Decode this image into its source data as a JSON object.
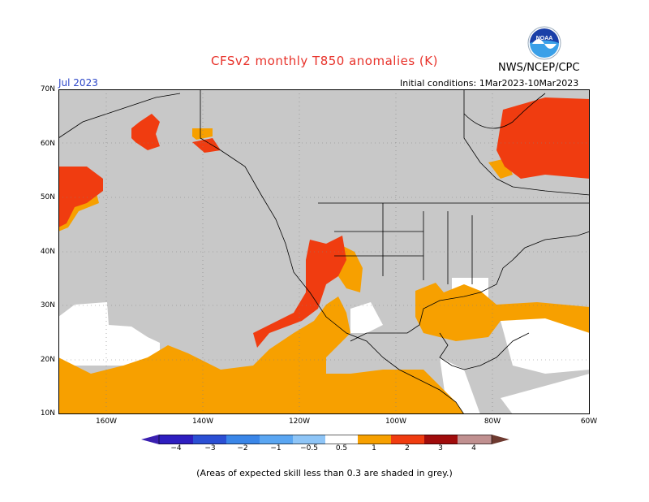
{
  "header": {
    "title": "CFSv2 monthly T850 anomalies (K)",
    "center": "NWS/NCEP/CPC",
    "month": "Jul 2023",
    "initial_conditions": "Initial conditions: 1Mar2023-10Mar2023"
  },
  "map": {
    "lat_labels": [
      "70N",
      "60N",
      "50N",
      "40N",
      "30N",
      "20N",
      "10N"
    ],
    "lon_labels": [
      "160W",
      "140W",
      "120W",
      "100W",
      "80W",
      "60W"
    ],
    "skill_mask_color": "#c8c8c8",
    "land_outline_color": "#000000"
  },
  "legend": {
    "labels": [
      "−4",
      "−3",
      "−2",
      "−1",
      "−0.5",
      "0.5",
      "1",
      "2",
      "3",
      "4"
    ],
    "colors": [
      "#3a1fb0",
      "#2b4fd4",
      "#3a86e8",
      "#5aa6f2",
      "#8ec5f7",
      "#ffffff",
      "#f7a000",
      "#f03c10",
      "#a00c0c",
      "#c09090",
      "#6e3a30"
    ]
  },
  "footnote": "(Areas of expected skill less than 0.3 are shaded in grey.)"
}
